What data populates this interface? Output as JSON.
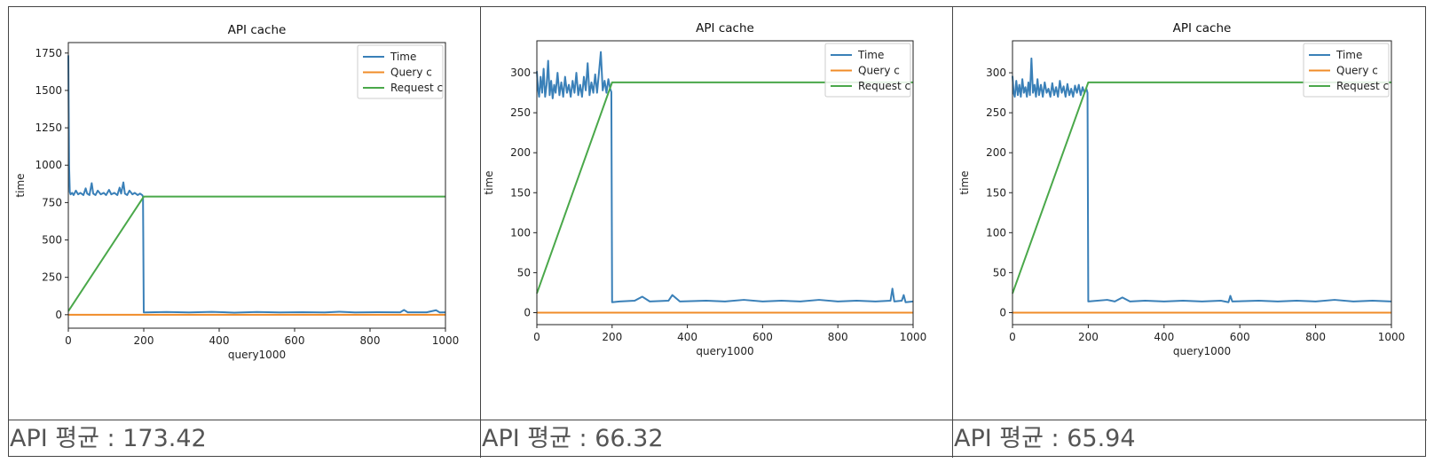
{
  "colors": {
    "time": "#3a80b8",
    "query": "#f08c28",
    "request": "#4aa84a",
    "border": "#444444",
    "caption": "#555555"
  },
  "captions": [
    "API 평균 : 173.42",
    "API 평균 : 66.32",
    "API 평균 : 65.94"
  ],
  "chart_data": [
    {
      "type": "line",
      "title": "API cache",
      "xlabel": "query1000",
      "ylabel": "time",
      "xlim": [
        0,
        1000
      ],
      "ylim": [
        -90,
        1820
      ],
      "x_ticks": [
        0,
        200,
        400,
        600,
        800,
        1000
      ],
      "y_ticks": [
        0,
        250,
        500,
        750,
        1000,
        1250,
        1500,
        1750
      ],
      "legend_position": "top-right",
      "legend": [
        "Time",
        "Query c",
        "Request c"
      ],
      "series": [
        {
          "name": "Time",
          "points": [
            [
              0,
              1735
            ],
            [
              2,
              1000
            ],
            [
              4,
              820
            ],
            [
              6,
              805
            ],
            [
              10,
              815
            ],
            [
              14,
              800
            ],
            [
              20,
              830
            ],
            [
              26,
              805
            ],
            [
              32,
              815
            ],
            [
              40,
              800
            ],
            [
              46,
              845
            ],
            [
              50,
              810
            ],
            [
              56,
              800
            ],
            [
              62,
              880
            ],
            [
              66,
              810
            ],
            [
              72,
              800
            ],
            [
              78,
              830
            ],
            [
              86,
              805
            ],
            [
              94,
              815
            ],
            [
              100,
              800
            ],
            [
              108,
              835
            ],
            [
              114,
              805
            ],
            [
              122,
              815
            ],
            [
              130,
              800
            ],
            [
              136,
              850
            ],
            [
              140,
              810
            ],
            [
              146,
              885
            ],
            [
              150,
              810
            ],
            [
              156,
              800
            ],
            [
              162,
              830
            ],
            [
              170,
              805
            ],
            [
              176,
              815
            ],
            [
              184,
              800
            ],
            [
              190,
              810
            ],
            [
              196,
              800
            ],
            [
              198,
              790
            ],
            [
              200,
              15
            ],
            [
              260,
              18
            ],
            [
              320,
              15
            ],
            [
              380,
              19
            ],
            [
              440,
              14
            ],
            [
              500,
              18
            ],
            [
              560,
              15
            ],
            [
              620,
              17
            ],
            [
              680,
              15
            ],
            [
              720,
              20
            ],
            [
              760,
              15
            ],
            [
              820,
              17
            ],
            [
              880,
              16
            ],
            [
              890,
              32
            ],
            [
              900,
              16
            ],
            [
              950,
              16
            ],
            [
              975,
              30
            ],
            [
              985,
              15
            ],
            [
              1000,
              16
            ]
          ]
        },
        {
          "name": "Query c",
          "points": [
            [
              0,
              0
            ],
            [
              1000,
              0
            ]
          ]
        },
        {
          "name": "Request c",
          "points": [
            [
              0,
              24
            ],
            [
              200,
              790
            ],
            [
              1000,
              790
            ]
          ]
        }
      ]
    },
    {
      "type": "line",
      "title": "API cache",
      "xlabel": "query1000",
      "ylabel": "time",
      "xlim": [
        0,
        1000
      ],
      "ylim": [
        -15,
        340
      ],
      "x_ticks": [
        0,
        200,
        400,
        600,
        800,
        1000
      ],
      "y_ticks": [
        0,
        50,
        100,
        150,
        200,
        250,
        300
      ],
      "legend_position": "top-right",
      "legend": [
        "Time",
        "Query c",
        "Request c"
      ],
      "series": [
        {
          "name": "Time",
          "points": [
            [
              0,
              302
            ],
            [
              3,
              280
            ],
            [
              6,
              270
            ],
            [
              10,
              295
            ],
            [
              14,
              275
            ],
            [
              18,
              305
            ],
            [
              22,
              270
            ],
            [
              26,
              285
            ],
            [
              30,
              315
            ],
            [
              34,
              272
            ],
            [
              38,
              290
            ],
            [
              42,
              268
            ],
            [
              46,
              285
            ],
            [
              50,
              275
            ],
            [
              55,
              300
            ],
            [
              60,
              272
            ],
            [
              65,
              288
            ],
            [
              70,
              270
            ],
            [
              75,
              295
            ],
            [
              80,
              275
            ],
            [
              85,
              285
            ],
            [
              90,
              270
            ],
            [
              95,
              290
            ],
            [
              100,
              275
            ],
            [
              105,
              300
            ],
            [
              110,
              272
            ],
            [
              115,
              285
            ],
            [
              120,
              270
            ],
            [
              125,
              295
            ],
            [
              130,
              278
            ],
            [
              135,
              312
            ],
            [
              140,
              272
            ],
            [
              145,
              288
            ],
            [
              150,
              275
            ],
            [
              155,
              298
            ],
            [
              160,
              275
            ],
            [
              165,
              300
            ],
            [
              170,
              326
            ],
            [
              175,
              278
            ],
            [
              180,
              290
            ],
            [
              185,
              275
            ],
            [
              190,
              292
            ],
            [
              195,
              280
            ],
            [
              198,
              276
            ],
            [
              200,
              13
            ],
            [
              220,
              14
            ],
            [
              260,
              15
            ],
            [
              280,
              20
            ],
            [
              300,
              14
            ],
            [
              350,
              15
            ],
            [
              360,
              22
            ],
            [
              380,
              14
            ],
            [
              450,
              15
            ],
            [
              500,
              14
            ],
            [
              550,
              16
            ],
            [
              600,
              14
            ],
            [
              650,
              15
            ],
            [
              700,
              14
            ],
            [
              750,
              16
            ],
            [
              800,
              14
            ],
            [
              850,
              15
            ],
            [
              900,
              14
            ],
            [
              940,
              15
            ],
            [
              945,
              30
            ],
            [
              950,
              14
            ],
            [
              970,
              15
            ],
            [
              975,
              22
            ],
            [
              980,
              13
            ],
            [
              1000,
              14
            ]
          ]
        },
        {
          "name": "Query c",
          "points": [
            [
              0,
              0
            ],
            [
              1000,
              0
            ]
          ]
        },
        {
          "name": "Request c",
          "points": [
            [
              0,
              24
            ],
            [
              200,
              288
            ],
            [
              1000,
              288
            ]
          ]
        }
      ]
    },
    {
      "type": "line",
      "title": "API cache",
      "xlabel": "query1000",
      "ylabel": "time",
      "xlim": [
        0,
        1000
      ],
      "ylim": [
        -15,
        340
      ],
      "x_ticks": [
        0,
        200,
        400,
        600,
        800,
        1000
      ],
      "y_ticks": [
        0,
        50,
        100,
        150,
        200,
        250,
        300
      ],
      "legend_position": "top-right",
      "legend": [
        "Time",
        "Query c",
        "Request c"
      ],
      "series": [
        {
          "name": "Time",
          "points": [
            [
              0,
              296
            ],
            [
              3,
              275
            ],
            [
              6,
              270
            ],
            [
              10,
              290
            ],
            [
              14,
              272
            ],
            [
              18,
              285
            ],
            [
              22,
              270
            ],
            [
              26,
              292
            ],
            [
              30,
              275
            ],
            [
              34,
              282
            ],
            [
              38,
              270
            ],
            [
              42,
              288
            ],
            [
              46,
              272
            ],
            [
              50,
              318
            ],
            [
              54,
              275
            ],
            [
              58,
              285
            ],
            [
              62,
              270
            ],
            [
              66,
              292
            ],
            [
              70,
              272
            ],
            [
              75,
              285
            ],
            [
              80,
              270
            ],
            [
              85,
              288
            ],
            [
              90,
              275
            ],
            [
              95,
              280
            ],
            [
              100,
              270
            ],
            [
              105,
              287
            ],
            [
              110,
              272
            ],
            [
              115,
              282
            ],
            [
              120,
              270
            ],
            [
              125,
              290
            ],
            [
              130,
              275
            ],
            [
              135,
              283
            ],
            [
              140,
              270
            ],
            [
              145,
              286
            ],
            [
              150,
              272
            ],
            [
              155,
              280
            ],
            [
              160,
              270
            ],
            [
              165,
              284
            ],
            [
              170,
              275
            ],
            [
              175,
              285
            ],
            [
              180,
              272
            ],
            [
              185,
              282
            ],
            [
              190,
              275
            ],
            [
              195,
              280
            ],
            [
              198,
              275
            ],
            [
              200,
              14
            ],
            [
              250,
              16
            ],
            [
              270,
              14
            ],
            [
              290,
              19
            ],
            [
              310,
              14
            ],
            [
              350,
              15
            ],
            [
              400,
              14
            ],
            [
              450,
              15
            ],
            [
              500,
              14
            ],
            [
              550,
              15
            ],
            [
              570,
              13
            ],
            [
              575,
              21
            ],
            [
              580,
              14
            ],
            [
              650,
              15
            ],
            [
              700,
              14
            ],
            [
              750,
              15
            ],
            [
              800,
              14
            ],
            [
              850,
              16
            ],
            [
              900,
              14
            ],
            [
              950,
              15
            ],
            [
              1000,
              14
            ]
          ]
        },
        {
          "name": "Query c",
          "points": [
            [
              0,
              0
            ],
            [
              1000,
              0
            ]
          ]
        },
        {
          "name": "Request c",
          "points": [
            [
              0,
              24
            ],
            [
              200,
              288
            ],
            [
              1000,
              288
            ]
          ]
        }
      ]
    }
  ]
}
